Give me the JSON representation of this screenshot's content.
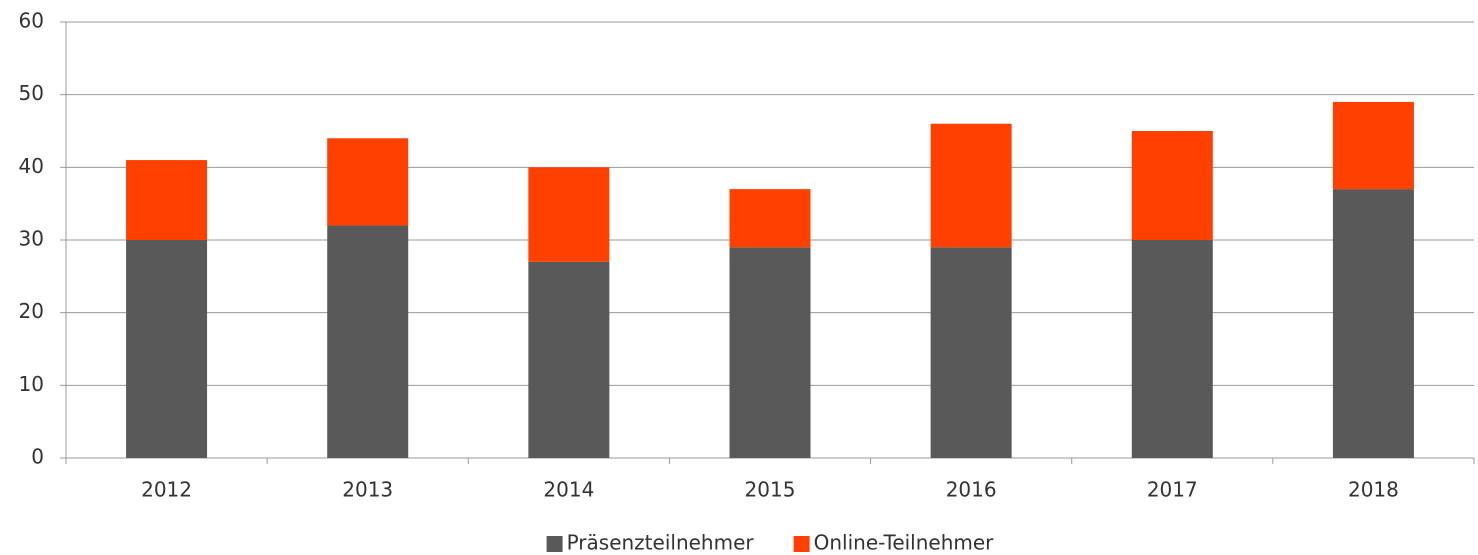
{
  "chart_data": {
    "type": "bar",
    "stacked": true,
    "categories": [
      "2012",
      "2013",
      "2014",
      "2015",
      "2016",
      "2017",
      "2018"
    ],
    "series": [
      {
        "name": "Präsenzteilnehmer",
        "color": "#595959",
        "values": [
          30,
          32,
          27,
          29,
          29,
          30,
          37
        ]
      },
      {
        "name": "Online-Teilnehmer",
        "color": "#ff4000",
        "values": [
          11,
          12,
          13,
          8,
          17,
          15,
          12
        ]
      }
    ],
    "ylim": [
      0,
      60
    ],
    "yticks": [
      0,
      10,
      20,
      30,
      40,
      50,
      60
    ],
    "grid": true,
    "legend": "bottom"
  }
}
